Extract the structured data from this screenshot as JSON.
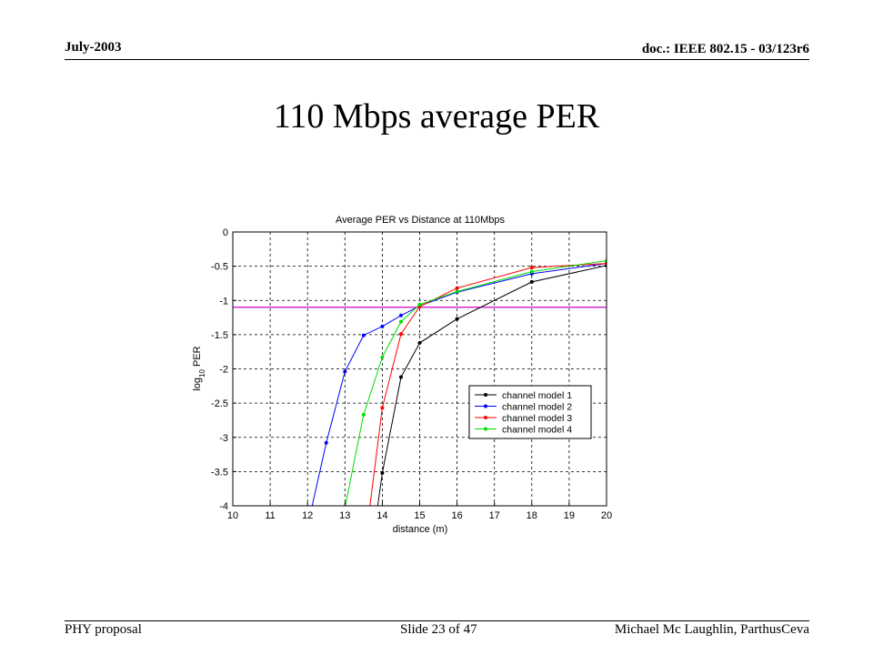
{
  "header": {
    "date": "July-2003",
    "doc": "doc.: IEEE 802.15 - 03/123r6"
  },
  "slide": {
    "title": "110 Mbps average PER"
  },
  "footer": {
    "left": "PHY proposal",
    "center": "Slide 23 of 47",
    "right": "Michael  Mc Laughlin, ParthusCeva"
  },
  "chart_data": {
    "type": "line",
    "title": "Average PER vs Distance at 110Mbps",
    "xlabel": "distance (m)",
    "ylabel": "log10 PER",
    "xlim": [
      10,
      20
    ],
    "ylim": [
      -4,
      0
    ],
    "xticks": [
      10,
      11,
      12,
      13,
      14,
      15,
      16,
      17,
      18,
      19,
      20
    ],
    "yticks": [
      0,
      -0.5,
      -1,
      -1.5,
      -2,
      -2.5,
      -3,
      -3.5,
      -4
    ],
    "grid": true,
    "legend_position": "lower-right",
    "threshold": {
      "y": -1.1,
      "color": "#cc00cc"
    },
    "series": [
      {
        "name": "channel model 1",
        "color": "#000000",
        "points": [
          [
            13.8,
            -4.3
          ],
          [
            14,
            -3.52
          ],
          [
            14.5,
            -2.12
          ],
          [
            15,
            -1.62
          ],
          [
            16,
            -1.27
          ],
          [
            18,
            -0.73
          ],
          [
            20,
            -0.49
          ]
        ]
      },
      {
        "name": "channel model 2",
        "color": "#0000ff",
        "points": [
          [
            12,
            -4.3
          ],
          [
            12.5,
            -3.08
          ],
          [
            13,
            -2.04
          ],
          [
            13.5,
            -1.51
          ],
          [
            14,
            -1.38
          ],
          [
            14.5,
            -1.22
          ],
          [
            15,
            -1.08
          ],
          [
            16,
            -0.88
          ],
          [
            18,
            -0.61
          ],
          [
            20,
            -0.46
          ]
        ]
      },
      {
        "name": "channel model 3",
        "color": "#ff0000",
        "points": [
          [
            13.6,
            -4.3
          ],
          [
            14,
            -2.57
          ],
          [
            14.5,
            -1.49
          ],
          [
            15,
            -1.09
          ],
          [
            16,
            -0.82
          ],
          [
            18,
            -0.52
          ],
          [
            20,
            -0.46
          ]
        ]
      },
      {
        "name": "channel model 4",
        "color": "#00dd00",
        "points": [
          [
            12.9,
            -4.3
          ],
          [
            13.5,
            -2.67
          ],
          [
            14,
            -1.83
          ],
          [
            14.5,
            -1.31
          ],
          [
            15,
            -1.06
          ],
          [
            16,
            -0.87
          ],
          [
            18,
            -0.58
          ],
          [
            20,
            -0.42
          ]
        ]
      }
    ]
  }
}
